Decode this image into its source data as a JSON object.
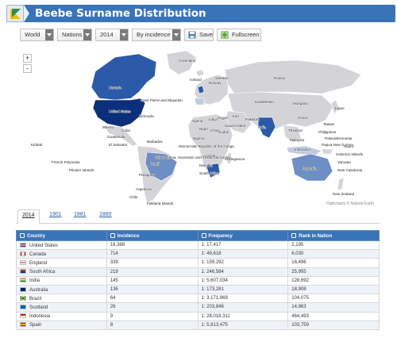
{
  "header": {
    "title": "Beebe Surname Distribution"
  },
  "toolbar": {
    "region": "World",
    "level": "Nations",
    "year": "2014",
    "metric": "By incidence",
    "save_label": "Save",
    "fullscreen_label": "Fullscreen"
  },
  "map": {
    "zoom_in": "+",
    "zoom_out": "-",
    "credit": "Highcharts © Natural Earth",
    "labels": [
      "Greenland",
      "Canada",
      "United States",
      "Mexico",
      "Guatemala",
      "Brazil",
      "Paraguay",
      "Argentina",
      "Chile",
      "Iceland",
      "Norway",
      "Sweden",
      "Russia",
      "Kazakhstan",
      "Mongolia",
      "China",
      "India",
      "Pakistan",
      "Iran",
      "Saudi Arabia",
      "Algeria",
      "Libya",
      "Egypt",
      "Niger",
      "Chad",
      "Sudan",
      "Nigeria",
      "Angola",
      "Namibia",
      "South Africa",
      "Madagascar",
      "Australia",
      "Indonesia",
      "New Zealand",
      "Japan",
      "Taiwan",
      "Thailand",
      "Philippines",
      "Malaysia",
      "Papua New Guinea",
      "Kiribati",
      "French Polynesia",
      "Pitcairn Islands",
      "Falkland Islands",
      "Saint Pierre and Miquelon",
      "Bermuda",
      "Cuba",
      "El Salvador",
      "Barbados",
      "Democratic Republic of the Congo",
      "Saint Helena, Ascension and Tristan da Cunha",
      "Solomon Islands",
      "Vanuatu",
      "New Caledonia",
      "Micronesia",
      "Palau",
      "Nauru"
    ]
  },
  "tabs": [
    "2014",
    "1901",
    "1881",
    "1880"
  ],
  "table": {
    "headers": [
      "Country",
      "Incidence",
      "Frequency",
      "Rank in Nation"
    ],
    "rows": [
      {
        "country": "United States",
        "incidence": "18,388",
        "frequency": "1: 17,417",
        "rank": "2,195",
        "flag": "us"
      },
      {
        "country": "Canada",
        "incidence": "714",
        "frequency": "1: 49,618",
        "rank": "6,030",
        "flag": "ca"
      },
      {
        "country": "England",
        "incidence": "339",
        "frequency": "1: 159,292",
        "rank": "16,496",
        "flag": "en"
      },
      {
        "country": "South Africa",
        "incidence": "219",
        "frequency": "1: 246,584",
        "rank": "25,955",
        "flag": "za"
      },
      {
        "country": "India",
        "incidence": "145",
        "frequency": "1: 5,607,034",
        "rank": "128,692",
        "flag": "in"
      },
      {
        "country": "Australia",
        "incidence": "136",
        "frequency": "1: 173,281",
        "rank": "18,908",
        "flag": "au"
      },
      {
        "country": "Brazil",
        "incidence": "64",
        "frequency": "1: 3,171,969",
        "rank": "104,075",
        "flag": "br"
      },
      {
        "country": "Scotland",
        "incidence": "26",
        "frequency": "1: 203,846",
        "rank": "14,963",
        "flag": "sc"
      },
      {
        "country": "Indonesia",
        "incidence": "9",
        "frequency": "1: 28,018,311",
        "rank": "464,493",
        "flag": "id"
      },
      {
        "country": "Spain",
        "incidence": "8",
        "frequency": "1: 5,813,475",
        "rank": "103,759",
        "flag": "es"
      }
    ]
  },
  "colors": {
    "header": "#3a74b8",
    "highest": "#0b2f7a",
    "high": "#2b5aa8",
    "mid": "#6e8fc4",
    "low": "#bfcbe0",
    "none": "#d4d4d8"
  }
}
